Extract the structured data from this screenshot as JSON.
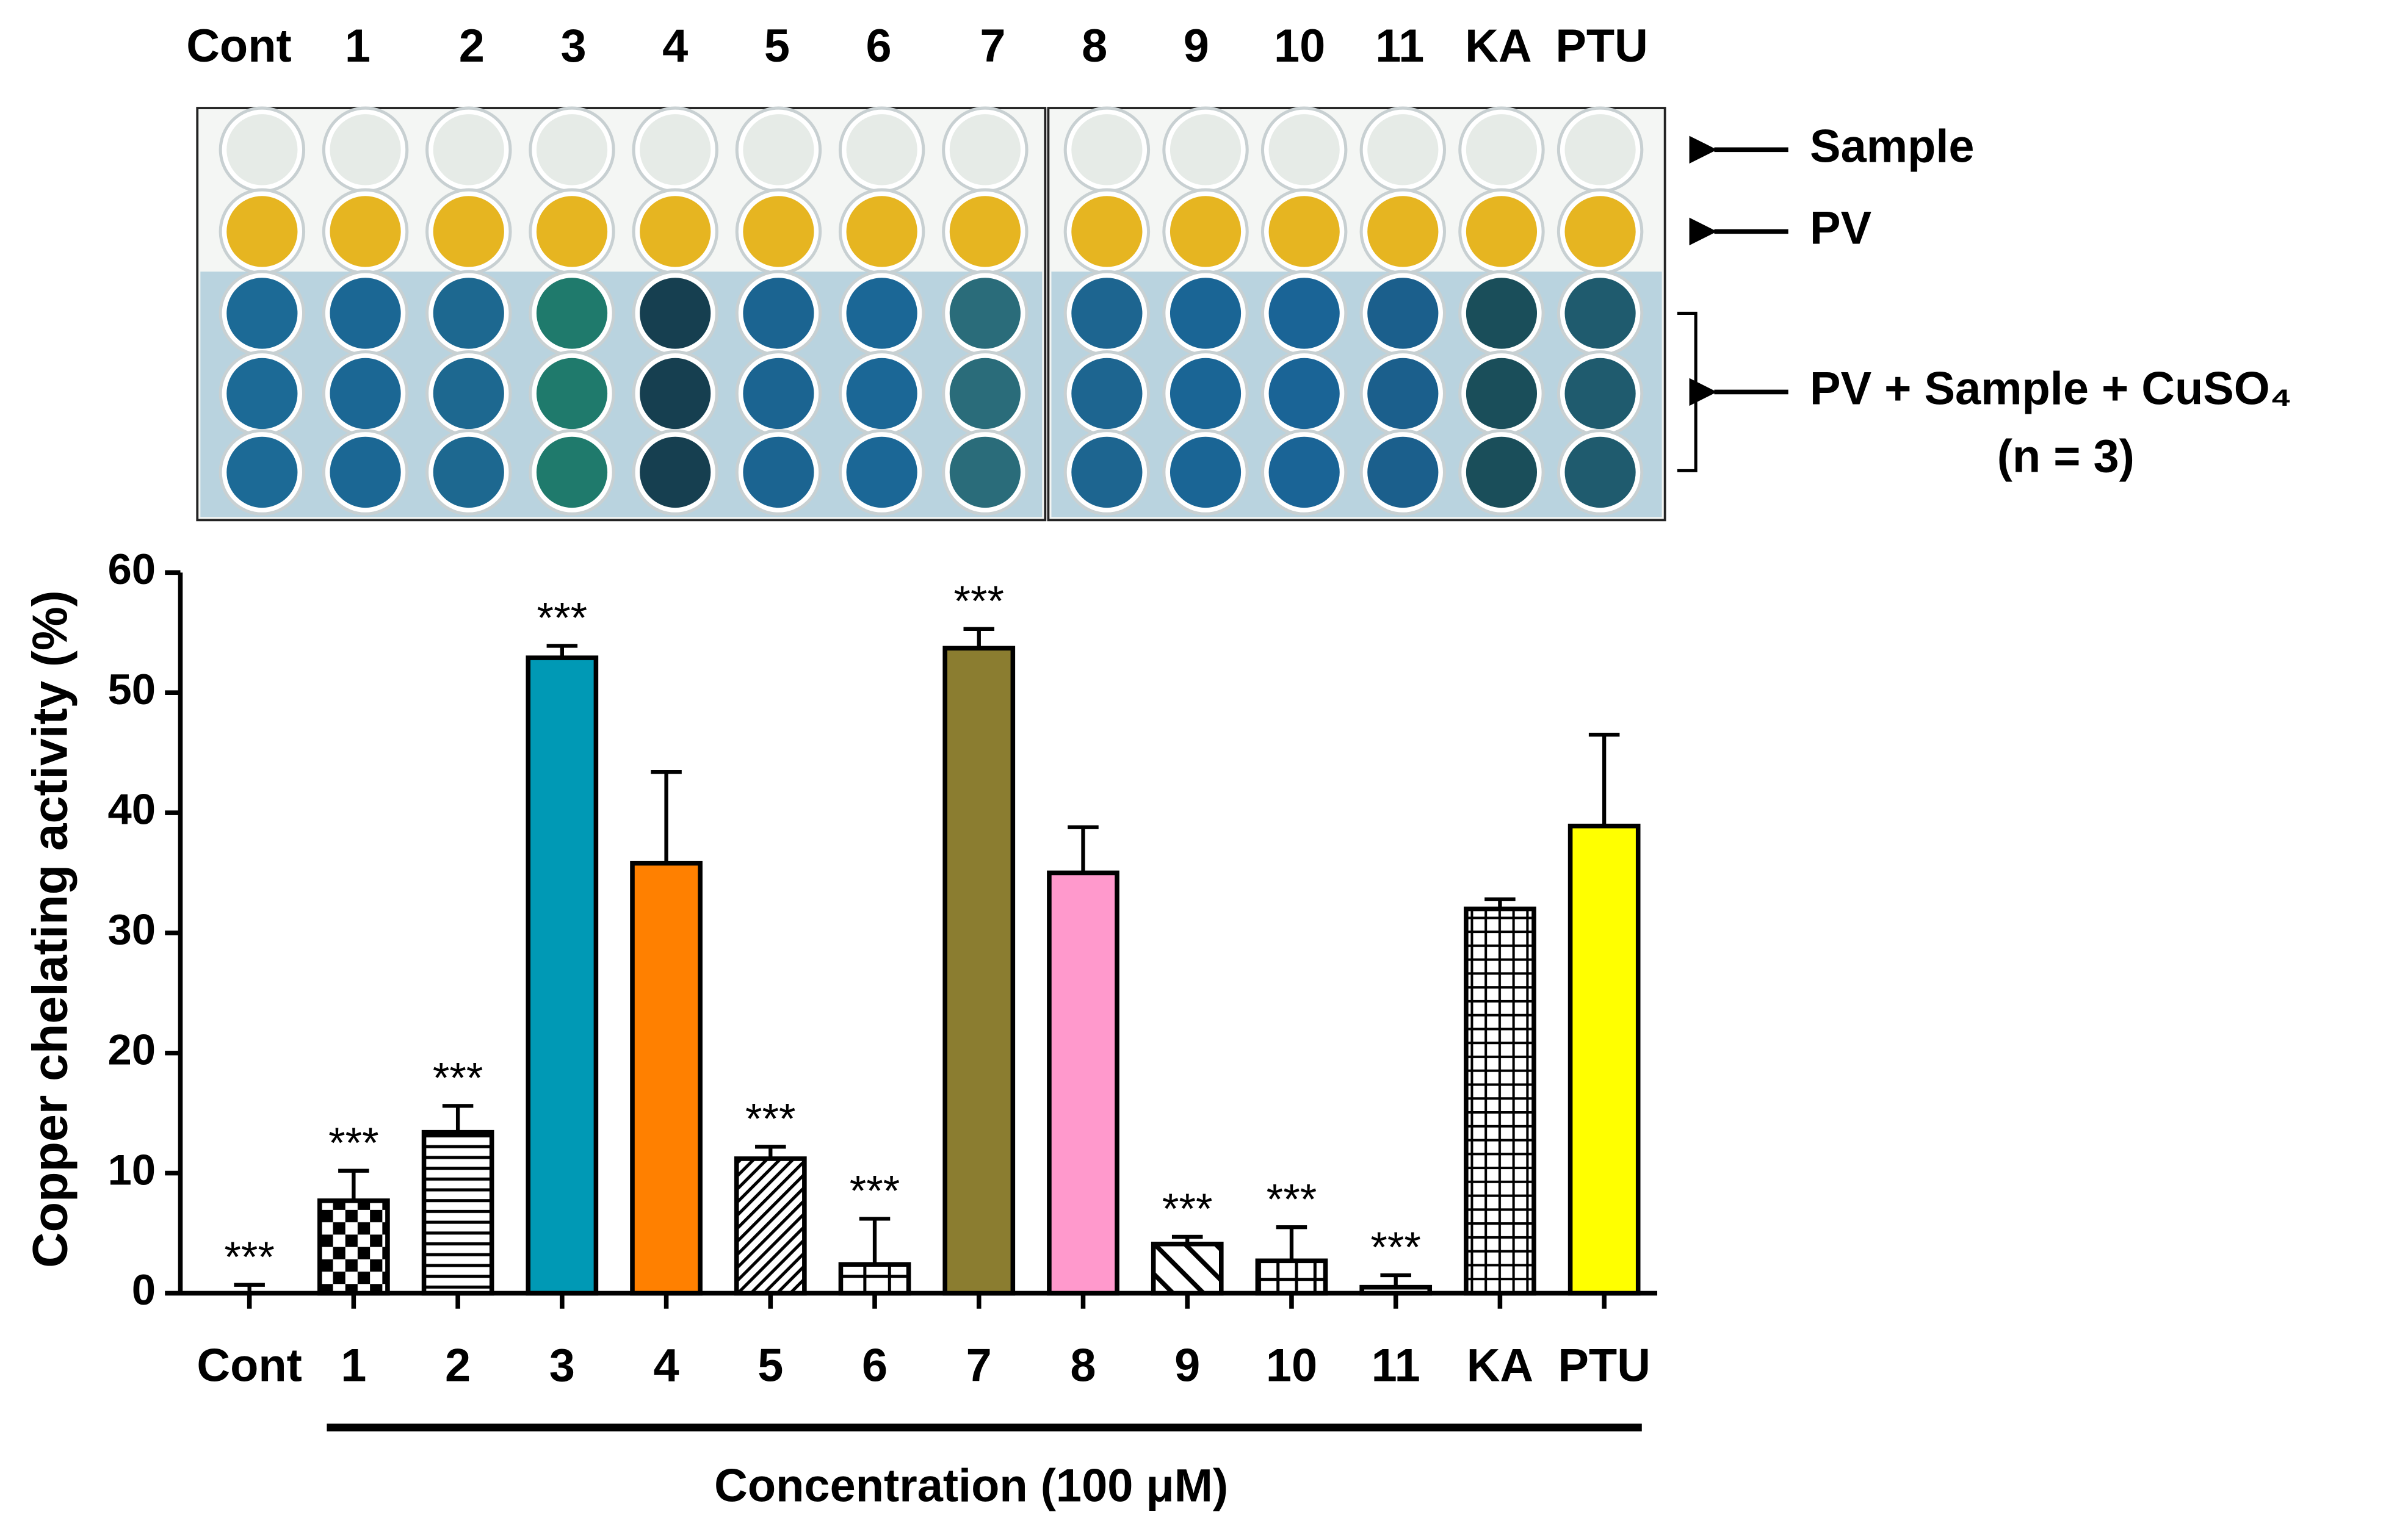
{
  "plate": {
    "columns": [
      "Cont",
      "1",
      "2",
      "3",
      "4",
      "5",
      "6",
      "7",
      "8",
      "9",
      "10",
      "11",
      "KA",
      "PTU"
    ],
    "rows": [
      "Sample",
      "PV",
      "PV + Sample + CuSO₄"
    ],
    "note": "(n = 3)"
  },
  "chart_data": {
    "type": "bar",
    "ylabel": "Copper chelating activity (%)",
    "xlabel": "Concentration (100 μM)",
    "categories": [
      "Cont",
      "1",
      "2",
      "3",
      "4",
      "5",
      "6",
      "7",
      "8",
      "9",
      "10",
      "11",
      "KA",
      "PTU"
    ],
    "values": [
      0,
      7.7,
      13.4,
      52.9,
      35.8,
      11.2,
      2.4,
      53.7,
      35.0,
      4.1,
      2.7,
      0.5,
      32.0,
      38.9
    ],
    "errors": [
      0.7,
      2.5,
      2.2,
      1.0,
      7.6,
      1.0,
      3.8,
      1.6,
      3.8,
      0.6,
      2.8,
      1.0,
      0.8,
      7.6
    ],
    "significance": [
      "***",
      "***",
      "***",
      "***",
      null,
      "***",
      "***",
      "***",
      null,
      "***",
      "***",
      "***",
      null,
      null
    ],
    "fills": [
      "white",
      "checker",
      "hlines",
      "#0099b5",
      "#ff8000",
      "dhatch",
      "boxes",
      "#8b7d30",
      "#ff99cc",
      "dhatch-wide",
      "vboxes",
      "white",
      "grid",
      "#ffff00"
    ],
    "ylim": [
      0,
      60
    ],
    "yticks": [
      0,
      10,
      20,
      30,
      40,
      50,
      60
    ]
  }
}
